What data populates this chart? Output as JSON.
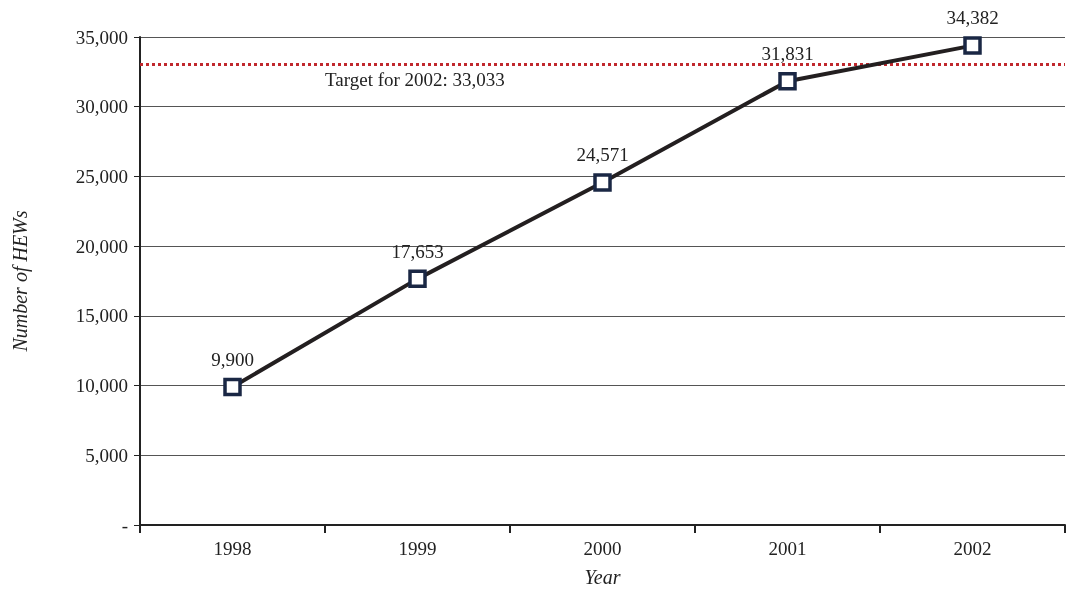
{
  "chart_data": {
    "type": "line",
    "xlabel": "Year",
    "ylabel": "Number of HEWs",
    "categories": [
      "1998",
      "1999",
      "2000",
      "2001",
      "2002"
    ],
    "series": [
      {
        "color": "#231f20",
        "values": [
          9900,
          17653,
          24571,
          31831,
          34382
        ],
        "value_labels": [
          "9,900",
          "17,653",
          "24,571",
          "31,831",
          "34,382"
        ]
      }
    ],
    "ylim": [
      0,
      35000
    ],
    "yticks": [
      {
        "value": 0,
        "label": "-"
      },
      {
        "value": 5000,
        "label": "5,000"
      },
      {
        "value": 10000,
        "label": "10,000"
      },
      {
        "value": 15000,
        "label": "15,000"
      },
      {
        "value": 20000,
        "label": "20,000"
      },
      {
        "value": 25000,
        "label": "25,000"
      },
      {
        "value": 30000,
        "label": "30,000"
      },
      {
        "value": 35000,
        "label": "35,000"
      }
    ],
    "ref_lines": [
      {
        "axis": "y",
        "value": 33033,
        "label": "Target for 2002: 33,033",
        "color": "#c0282d",
        "line_style": "dotted"
      }
    ],
    "grid": "y",
    "marker": "square",
    "line_style": "solid"
  }
}
